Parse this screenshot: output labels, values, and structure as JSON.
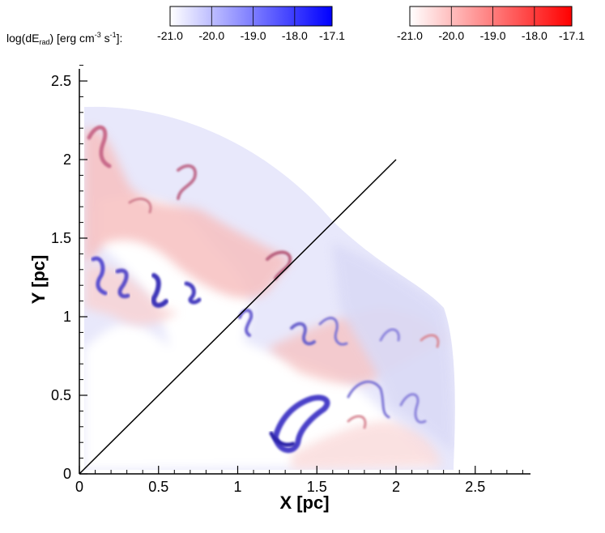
{
  "chart_data": {
    "type": "heatmap",
    "title": "",
    "xlabel": "X [pc]",
    "ylabel": "Y [pc]",
    "xlim": [
      0,
      2.85
    ],
    "ylim": [
      0,
      2.6
    ],
    "x_ticks": [
      "0",
      "0.5",
      "1",
      "1.5",
      "2",
      "2.5"
    ],
    "y_ticks": [
      "0",
      "0.5",
      "1",
      "1.5",
      "2",
      "2.5"
    ],
    "colorbar_label": "log(dE",
    "colorbar_label_sub": "rad",
    "colorbar_label_rest": ") [erg cm",
    "colorbar_label_sup1": "-3",
    "colorbar_label_mid": " s",
    "colorbar_label_sup2": "-1",
    "colorbar_label_end": "]:",
    "colorbars": [
      {
        "name": "blue",
        "color_low": "#ffffff",
        "color_high": "#0000ff",
        "ticks": [
          "-21.0",
          "-20.0",
          "-19.0",
          "-18.0",
          "-17.1"
        ]
      },
      {
        "name": "red",
        "color_low": "#ffffff",
        "color_high": "#ff0000",
        "ticks": [
          "-21.0",
          "-20.0",
          "-19.0",
          "-18.0",
          "-17.1"
        ]
      }
    ],
    "diagonal_line": {
      "x": [
        0,
        2
      ],
      "y": [
        0,
        2
      ],
      "color": "#000000"
    },
    "grid": false,
    "legend": "top"
  }
}
